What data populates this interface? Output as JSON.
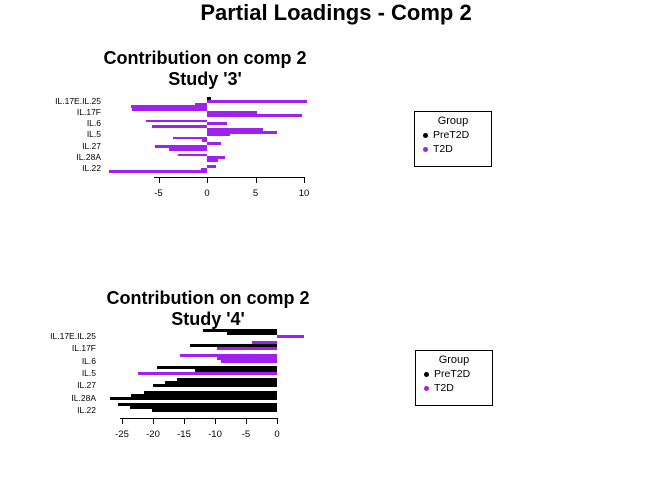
{
  "main_title": "Partial Loadings - Comp 2",
  "colors": {
    "pret2d": "#000000",
    "t2d": "#A020F0",
    "background": "#FFFFFF",
    "text": "#000000"
  },
  "chart_data": [
    {
      "type": "bar",
      "orientation": "horizontal",
      "title_line1": "Contribution on comp 2",
      "title_line2": "Study '3'",
      "xlabel": "",
      "ylabel": "",
      "x_ticks": [
        -5,
        0,
        5,
        10
      ],
      "xlim": [
        -10.5,
        10.5
      ],
      "grid": false,
      "categories": [
        "IL.17E.IL.25",
        "IL.17F",
        "IL.6",
        "IL.5",
        "IL.27",
        "IL.28A",
        "IL.22"
      ],
      "groups": [
        {
          "label": "IL.17E.IL.25",
          "bars": [
            {
              "value": 0.4,
              "group": "PreT2D"
            },
            {
              "value": 10.3,
              "group": "T2D"
            },
            {
              "value": -1.2,
              "group": "T2D"
            },
            {
              "value": -7.8,
              "group": "T2D"
            }
          ]
        },
        {
          "label": "IL.17F",
          "bars": [
            {
              "value": -7.7,
              "group": "T2D"
            },
            {
              "value": 5.2,
              "group": "T2D"
            },
            {
              "value": 9.8,
              "group": "T2D"
            }
          ]
        },
        {
          "label": "IL.6",
          "bars": [
            {
              "value": -6.3,
              "group": "T2D"
            },
            {
              "value": 2.1,
              "group": "T2D"
            },
            {
              "value": -5.7,
              "group": "T2D"
            },
            {
              "value": 5.8,
              "group": "T2D"
            }
          ]
        },
        {
          "label": "IL.5",
          "bars": [
            {
              "value": 7.2,
              "group": "T2D"
            },
            {
              "value": 2.4,
              "group": "T2D"
            },
            {
              "value": -3.5,
              "group": "T2D"
            },
            {
              "value": -0.5,
              "group": "T2D"
            }
          ]
        },
        {
          "label": "IL.27",
          "bars": [
            {
              "value": 1.4,
              "group": "T2D"
            },
            {
              "value": -5.4,
              "group": "T2D"
            },
            {
              "value": -3.9,
              "group": "T2D"
            }
          ]
        },
        {
          "label": "IL.28A",
          "bars": [
            {
              "value": -3.0,
              "group": "T2D"
            },
            {
              "value": 1.9,
              "group": "T2D"
            },
            {
              "value": 1.1,
              "group": "T2D"
            }
          ]
        },
        {
          "label": "IL.22",
          "bars": [
            {
              "value": 0.9,
              "group": "T2D"
            },
            {
              "value": -0.6,
              "group": "T2D"
            },
            {
              "value": -10.1,
              "group": "T2D"
            }
          ]
        }
      ],
      "legend": {
        "title": "Group",
        "position": "right",
        "entries": [
          {
            "label": "PreT2D",
            "color": "#000000"
          },
          {
            "label": "T2D",
            "color": "#A020F0"
          }
        ]
      }
    },
    {
      "type": "bar",
      "orientation": "horizontal",
      "title_line1": "Contribution on comp 2",
      "title_line2": "Study '4'",
      "xlabel": "",
      "ylabel": "",
      "x_ticks": [
        -25,
        -20,
        -15,
        -10,
        -5,
        0
      ],
      "xlim": [
        -27,
        4.5
      ],
      "grid": false,
      "categories": [
        "IL.17E.IL.25",
        "IL.17F",
        "IL.6",
        "IL.5",
        "IL.27",
        "IL.28A",
        "IL.22"
      ],
      "groups": [
        {
          "label": "IL.17E.IL.25",
          "bars": [
            {
              "value": -11.9,
              "group": "PreT2D"
            },
            {
              "value": -8.1,
              "group": "PreT2D"
            },
            {
              "value": 4.3,
              "group": "T2D"
            }
          ]
        },
        {
          "label": "IL.17F",
          "bars": [
            {
              "value": -4.0,
              "group": "T2D"
            },
            {
              "value": -14.0,
              "group": "PreT2D"
            },
            {
              "value": -9.7,
              "group": "T2D"
            }
          ]
        },
        {
          "label": "IL.6",
          "bars": [
            {
              "value": -15.6,
              "group": "T2D"
            },
            {
              "value": -9.7,
              "group": "T2D"
            },
            {
              "value": -9.0,
              "group": "T2D"
            }
          ]
        },
        {
          "label": "IL.5",
          "bars": [
            {
              "value": -19.4,
              "group": "PreT2D"
            },
            {
              "value": -13.2,
              "group": "PreT2D"
            },
            {
              "value": -22.4,
              "group": "T2D"
            }
          ]
        },
        {
          "label": "IL.27",
          "bars": [
            {
              "value": -16.1,
              "group": "PreT2D"
            },
            {
              "value": -18.1,
              "group": "PreT2D"
            },
            {
              "value": -20.0,
              "group": "PreT2D"
            }
          ]
        },
        {
          "label": "IL.28A",
          "bars": [
            {
              "value": -21.5,
              "group": "PreT2D"
            },
            {
              "value": -23.5,
              "group": "PreT2D"
            },
            {
              "value": -26.9,
              "group": "PreT2D"
            }
          ]
        },
        {
          "label": "IL.22",
          "bars": [
            {
              "value": -25.6,
              "group": "PreT2D"
            },
            {
              "value": -23.7,
              "group": "PreT2D"
            },
            {
              "value": -20.2,
              "group": "PreT2D"
            }
          ]
        }
      ],
      "legend": {
        "title": "Group",
        "position": "right",
        "entries": [
          {
            "label": "PreT2D",
            "color": "#000000"
          },
          {
            "label": "T2D",
            "color": "#A020F0"
          }
        ]
      }
    }
  ]
}
